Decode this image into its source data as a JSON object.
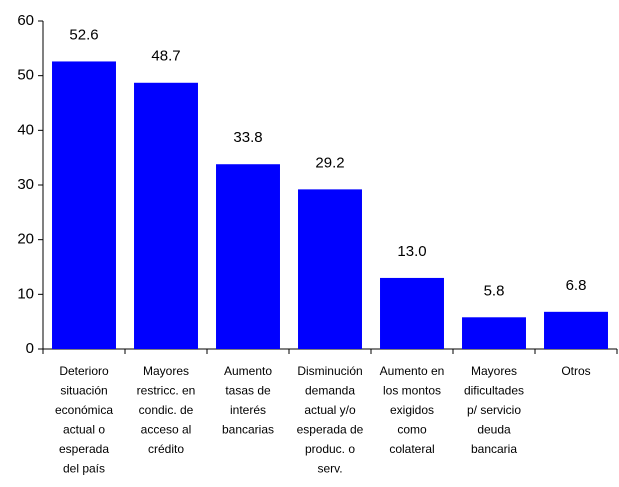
{
  "chart_data": {
    "type": "bar",
    "categories": [
      [
        "Deterioro",
        "situación",
        "económica",
        "actual o",
        "esperada",
        "del país"
      ],
      [
        "Mayores",
        "restricc. en",
        "condic. de",
        "acceso al",
        "crédito"
      ],
      [
        "Aumento",
        "tasas de",
        "interés",
        "bancarias"
      ],
      [
        "Disminución",
        "demanda",
        "actual y/o",
        "esperada de",
        "produc. o",
        "serv."
      ],
      [
        "Aumento en",
        "los montos",
        "exigidos",
        "como",
        "colateral"
      ],
      [
        "Mayores",
        "dificultades",
        "p/ servicio",
        "deuda",
        "bancaria"
      ],
      [
        "Otros"
      ]
    ],
    "values": [
      52.6,
      48.7,
      33.8,
      29.2,
      13.0,
      5.8,
      6.8
    ],
    "value_labels": [
      "52.6",
      "48.7",
      "33.8",
      "29.2",
      "13.0",
      "5.8",
      "6.8"
    ],
    "color": "#0000ff",
    "ylim": [
      0,
      60
    ],
    "yticks": [
      0,
      10,
      20,
      30,
      40,
      50,
      60
    ],
    "grid": false
  }
}
